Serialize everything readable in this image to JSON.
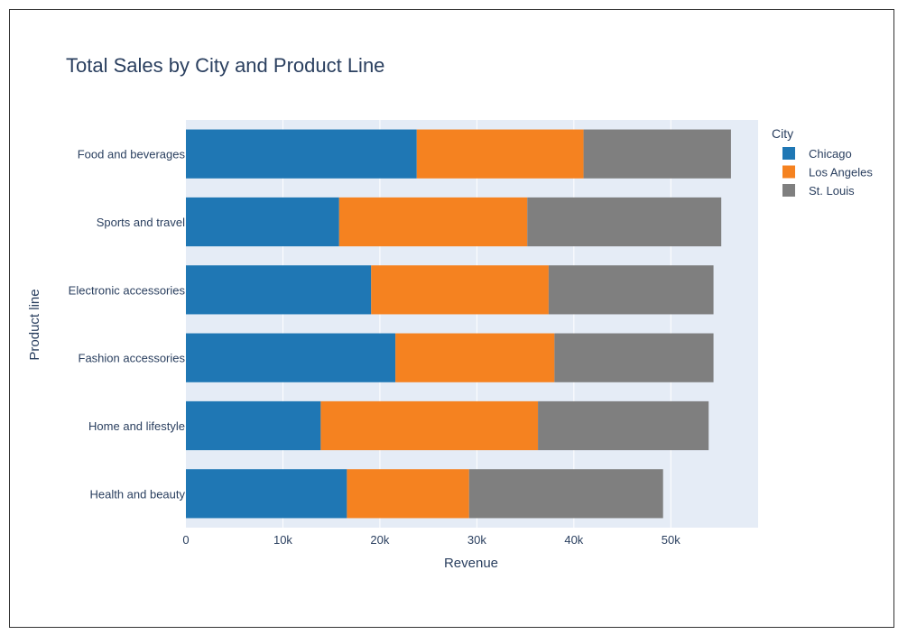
{
  "chart_data": {
    "type": "bar",
    "orientation": "horizontal",
    "stacked": true,
    "title": "Total Sales by City and Product Line",
    "xlabel": "Revenue",
    "ylabel": "Product line",
    "xlim": [
      0,
      59000
    ],
    "xticks": [
      0,
      10000,
      20000,
      30000,
      40000,
      50000
    ],
    "xtick_labels": [
      "0",
      "10k",
      "20k",
      "30k",
      "40k",
      "50k"
    ],
    "grid": true,
    "categories": [
      "Food and beverages",
      "Sports and travel",
      "Electronic accessories",
      "Fashion accessories",
      "Home and lifestyle",
      "Health and beauty"
    ],
    "legend_title": "City",
    "legend_position": "top-right",
    "series": [
      {
        "name": "Chicago",
        "color": "#1f77b4",
        "values": [
          23800,
          15800,
          19100,
          21600,
          13900,
          16600
        ]
      },
      {
        "name": "Los Angeles",
        "color": "#f58220",
        "values": [
          17200,
          19400,
          18300,
          16400,
          22400,
          12600
        ]
      },
      {
        "name": "St. Louis",
        "color": "#7f7f7f",
        "values": [
          15200,
          20000,
          17000,
          16400,
          17600,
          20000
        ]
      }
    ]
  }
}
